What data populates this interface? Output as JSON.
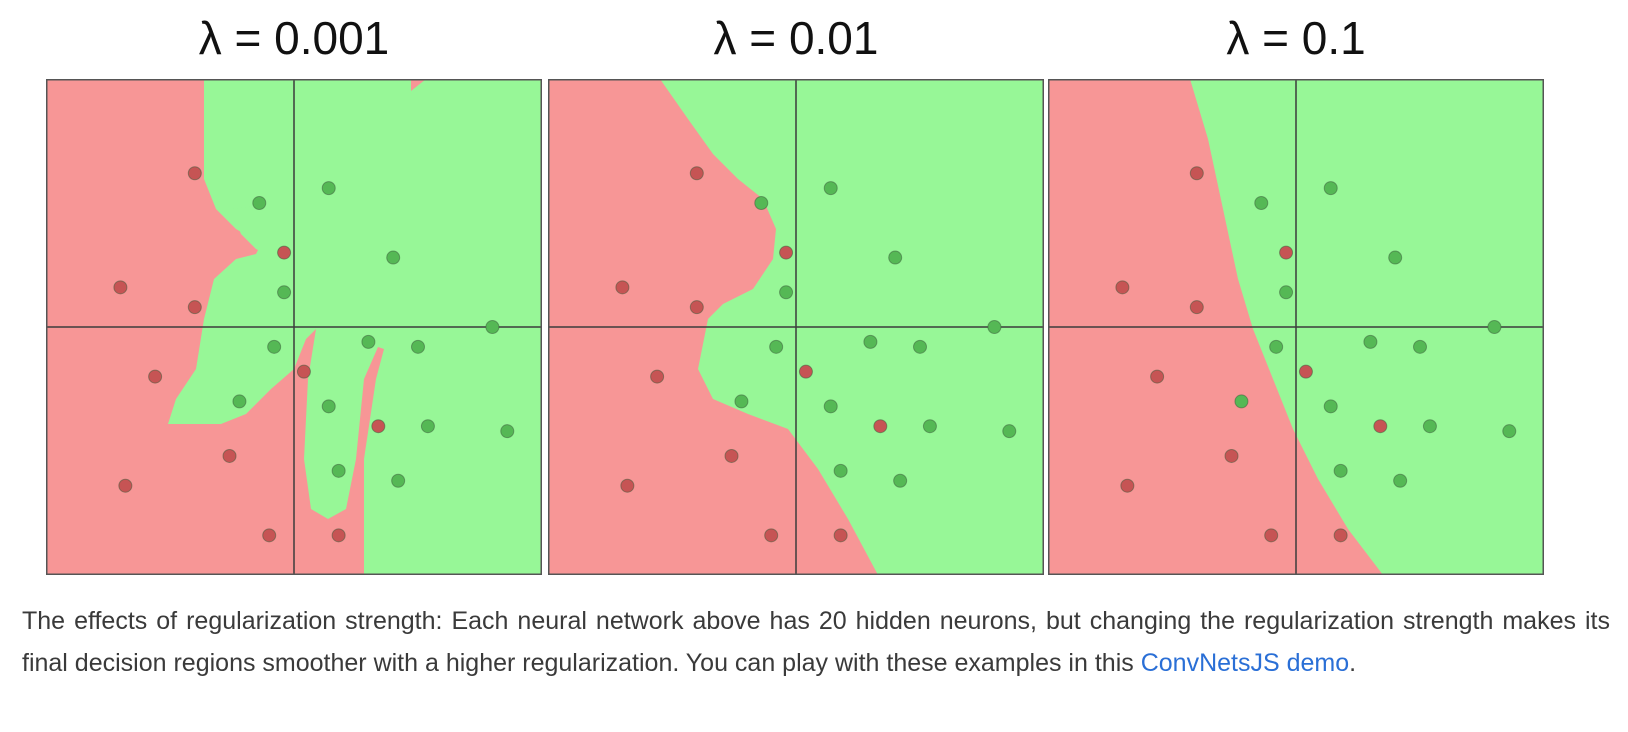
{
  "colors": {
    "red_region": "#f79696",
    "green_region": "#97f797",
    "red_point": "#c65454",
    "green_point": "#55b855",
    "axis": "#3c3c3c",
    "link": "#2a6fd6"
  },
  "panels": [
    {
      "title": "λ = 0.001"
    },
    {
      "title": "λ = 0.01"
    },
    {
      "title": "λ = 0.1"
    }
  ],
  "points": [
    {
      "x": 0.3,
      "y": 0.81,
      "label": "red"
    },
    {
      "x": 0.15,
      "y": 0.58,
      "label": "red"
    },
    {
      "x": 0.3,
      "y": 0.54,
      "label": "red"
    },
    {
      "x": 0.48,
      "y": 0.65,
      "label": "red"
    },
    {
      "x": 0.22,
      "y": 0.4,
      "label": "red"
    },
    {
      "x": 0.52,
      "y": 0.41,
      "label": "red"
    },
    {
      "x": 0.37,
      "y": 0.24,
      "label": "red"
    },
    {
      "x": 0.16,
      "y": 0.18,
      "label": "red"
    },
    {
      "x": 0.45,
      "y": 0.08,
      "label": "red"
    },
    {
      "x": 0.59,
      "y": 0.08,
      "label": "red"
    },
    {
      "x": 0.67,
      "y": 0.3,
      "label": "red"
    },
    {
      "x": 0.43,
      "y": 0.75,
      "label": "green"
    },
    {
      "x": 0.57,
      "y": 0.78,
      "label": "green"
    },
    {
      "x": 0.7,
      "y": 0.64,
      "label": "green"
    },
    {
      "x": 0.48,
      "y": 0.57,
      "label": "green"
    },
    {
      "x": 0.46,
      "y": 0.46,
      "label": "green"
    },
    {
      "x": 0.65,
      "y": 0.47,
      "label": "green"
    },
    {
      "x": 0.75,
      "y": 0.46,
      "label": "green"
    },
    {
      "x": 0.9,
      "y": 0.5,
      "label": "green"
    },
    {
      "x": 0.39,
      "y": 0.35,
      "label": "green"
    },
    {
      "x": 0.57,
      "y": 0.34,
      "label": "green"
    },
    {
      "x": 0.77,
      "y": 0.3,
      "label": "green"
    },
    {
      "x": 0.93,
      "y": 0.29,
      "label": "green"
    },
    {
      "x": 0.59,
      "y": 0.21,
      "label": "green"
    },
    {
      "x": 0.71,
      "y": 0.19,
      "label": "green"
    }
  ],
  "caption": {
    "text": "The effects of regularization strength: Each neural network above has 20 hidden neurons, but changing the regularization strength makes its final decision regions smoother with a higher regularization. You can play with these examples in this ",
    "link_text": "ConvNetsJS demo",
    "trailing": "."
  }
}
